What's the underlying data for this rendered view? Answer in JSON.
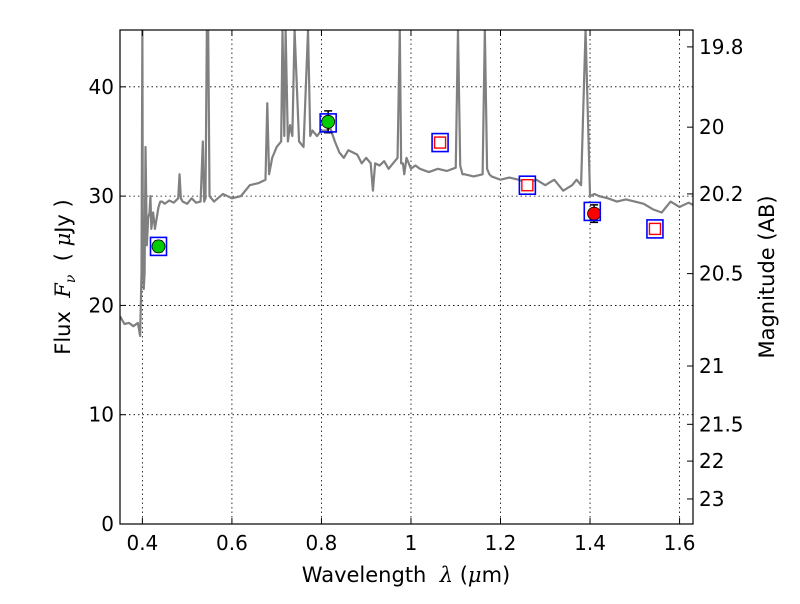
{
  "chart_data": {
    "type": "line",
    "title": "",
    "xlabel": {
      "prefix": "Wavelength  ",
      "symbol": "λ",
      "unit_open": " (",
      "unit_mu": "μ",
      "unit_rest": "m)"
    },
    "ylabel": {
      "prefix": "Flux  ",
      "symbol": "F",
      "sub": "ν",
      "unit_open": "  ( ",
      "unit_mu": "μ",
      "unit_rest": "Jy )"
    },
    "y2label": "Magnitude (AB)",
    "xlim": [
      0.35,
      1.63
    ],
    "ylim": [
      0,
      45.2
    ],
    "grid": true,
    "x_ticks": [
      0.4,
      0.6,
      0.8,
      1.0,
      1.2,
      1.4,
      1.6
    ],
    "x_tick_labels": [
      "0.4",
      "0.6",
      "0.8",
      "1",
      "1.2",
      "1.4",
      "1.6"
    ],
    "y_ticks": [
      0,
      10,
      20,
      30,
      40
    ],
    "y_tick_labels": [
      "0",
      "10",
      "20",
      "30",
      "40"
    ],
    "y2_ticks": [
      19.8,
      20,
      20.2,
      20.5,
      21,
      21.5,
      22,
      23
    ],
    "y2_tick_labels": [
      "19.8",
      "20",
      "20.2",
      "20.5",
      "21",
      "21.5",
      "22",
      "23"
    ],
    "series": [
      {
        "kind": "line",
        "color": "#808080",
        "x": [
          0.35,
          0.36,
          0.37,
          0.38,
          0.39,
          0.395,
          0.398,
          0.4,
          0.401,
          0.403,
          0.405,
          0.407,
          0.41,
          0.413,
          0.416,
          0.418,
          0.42,
          0.424,
          0.428,
          0.432,
          0.436,
          0.44,
          0.444,
          0.45,
          0.46,
          0.47,
          0.48,
          0.483,
          0.486,
          0.49,
          0.5,
          0.51,
          0.52,
          0.53,
          0.535,
          0.538,
          0.541,
          0.544,
          0.547,
          0.55,
          0.56,
          0.58,
          0.6,
          0.62,
          0.64,
          0.66,
          0.675,
          0.679,
          0.683,
          0.69,
          0.7,
          0.71,
          0.713,
          0.717,
          0.72,
          0.725,
          0.73,
          0.735,
          0.74,
          0.75,
          0.76,
          0.77,
          0.775,
          0.78,
          0.79,
          0.8,
          0.81,
          0.82,
          0.83,
          0.84,
          0.85,
          0.86,
          0.87,
          0.88,
          0.89,
          0.9,
          0.91,
          0.915,
          0.92,
          0.93,
          0.94,
          0.95,
          0.96,
          0.97,
          0.975,
          0.978,
          0.982,
          0.985,
          0.99,
          1.0,
          1.01,
          1.02,
          1.04,
          1.06,
          1.08,
          1.1,
          1.105,
          1.11,
          1.115,
          1.12,
          1.14,
          1.16,
          1.165,
          1.17,
          1.175,
          1.18,
          1.2,
          1.22,
          1.24,
          1.26,
          1.28,
          1.3,
          1.32,
          1.34,
          1.36,
          1.37,
          1.38,
          1.39,
          1.4,
          1.41,
          1.42,
          1.44,
          1.46,
          1.48,
          1.5,
          1.52,
          1.54,
          1.56,
          1.58,
          1.6,
          1.62,
          1.63
        ],
        "y": [
          19.0,
          18.3,
          18.4,
          18.1,
          18.4,
          17.2,
          23.0,
          45.2,
          26.0,
          21.5,
          23.0,
          34.5,
          25.5,
          28.0,
          28.5,
          30.0,
          27.0,
          28.5,
          27.0,
          28.0,
          29.0,
          29.5,
          29.5,
          29.3,
          29.6,
          29.4,
          29.8,
          32.0,
          29.8,
          29.5,
          29.3,
          29.8,
          29.4,
          29.5,
          35.0,
          29.5,
          29.8,
          45.2,
          45.2,
          30.0,
          29.5,
          30.2,
          29.8,
          30.0,
          31.0,
          31.2,
          31.5,
          38.5,
          32.0,
          33.5,
          34.5,
          35.0,
          45.2,
          35.5,
          45.2,
          35.0,
          36.5,
          35.5,
          45.2,
          35.0,
          34.5,
          45.2,
          35.5,
          36.0,
          35.5,
          36.0,
          36.0,
          36.2,
          35.0,
          34.0,
          33.5,
          34.2,
          34.0,
          33.8,
          33.0,
          33.5,
          33.0,
          30.5,
          33.0,
          32.8,
          33.2,
          32.5,
          33.0,
          33.5,
          45.2,
          33.0,
          33.0,
          32.0,
          33.5,
          32.5,
          32.8,
          32.5,
          32.2,
          32.5,
          32.3,
          32.6,
          45.2,
          32.8,
          32.0,
          32.0,
          31.8,
          32.0,
          45.2,
          32.5,
          32.0,
          31.8,
          31.5,
          31.7,
          31.5,
          31.2,
          31.5,
          31.0,
          31.5,
          30.5,
          31.0,
          31.5,
          31.0,
          45.2,
          30.0,
          30.2,
          30.0,
          29.8,
          29.5,
          29.7,
          29.5,
          29.3,
          28.8,
          28.5,
          29.5,
          29.0,
          29.4,
          29.2
        ]
      }
    ],
    "points": [
      {
        "x": 0.436,
        "y": 25.4,
        "marker": "filled-circle",
        "color": "#00cc00",
        "err": 0.5
      },
      {
        "x": 0.815,
        "y": 36.8,
        "marker": "filled-circle",
        "color": "#00cc00",
        "err": 1.0
      },
      {
        "x": 1.409,
        "y": 28.4,
        "marker": "filled-circle",
        "color": "#ff0000",
        "err": 0.8
      },
      {
        "x": 0.436,
        "y": 25.4,
        "marker": "open-square",
        "color": "#0000ff"
      },
      {
        "x": 0.815,
        "y": 36.7,
        "marker": "open-square",
        "color": "#0000ff"
      },
      {
        "x": 1.065,
        "y": 34.9,
        "marker": "open-square",
        "color": "#0000ff"
      },
      {
        "x": 1.26,
        "y": 31.0,
        "marker": "open-square",
        "color": "#0000ff"
      },
      {
        "x": 1.405,
        "y": 28.6,
        "marker": "open-square",
        "color": "#0000ff"
      },
      {
        "x": 1.545,
        "y": 27.0,
        "marker": "open-square",
        "color": "#0000ff"
      },
      {
        "x": 1.065,
        "y": 34.9,
        "marker": "small-open-square",
        "color": "#ff0000"
      },
      {
        "x": 1.26,
        "y": 31.0,
        "marker": "small-open-square",
        "color": "#ff0000"
      },
      {
        "x": 1.545,
        "y": 27.0,
        "marker": "small-open-square",
        "color": "#ff0000"
      }
    ]
  }
}
